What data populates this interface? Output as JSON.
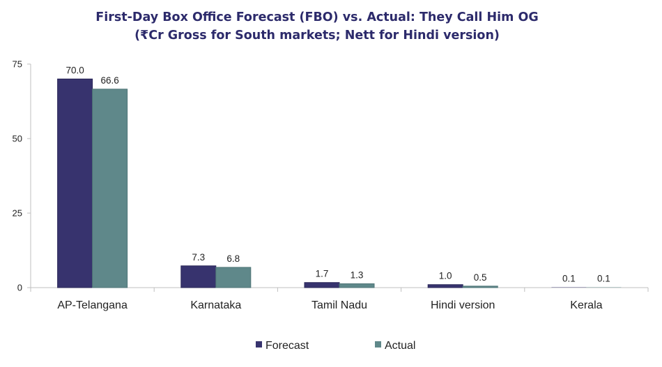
{
  "chart_data": {
    "type": "bar",
    "title": "First-Day Box Office Forecast (FBO) vs. Actual: They Call Him OG",
    "subtitle": "(₹Cr Gross for South markets; Nett for Hindi version)",
    "categories": [
      "AP-Telangana",
      "Karnataka",
      "Tamil Nadu",
      "Hindi version",
      "Kerala"
    ],
    "series": [
      {
        "name": "Forecast",
        "values": [
          70.0,
          7.3,
          1.7,
          1.0,
          0.1
        ],
        "labels": [
          "70.0",
          "7.3",
          "1.7",
          "1.0",
          "0.1"
        ],
        "color": "#37336e"
      },
      {
        "name": "Actual",
        "values": [
          66.6,
          6.8,
          1.3,
          0.5,
          0.1
        ],
        "labels": [
          "66.6",
          "6.8",
          "1.3",
          "0.5",
          "0.1"
        ],
        "color": "#5f888a"
      }
    ],
    "ylim": [
      0,
      75
    ],
    "yticks": [
      "0",
      "25",
      "50",
      "75"
    ],
    "legend_position": "bottom",
    "grid": false
  }
}
